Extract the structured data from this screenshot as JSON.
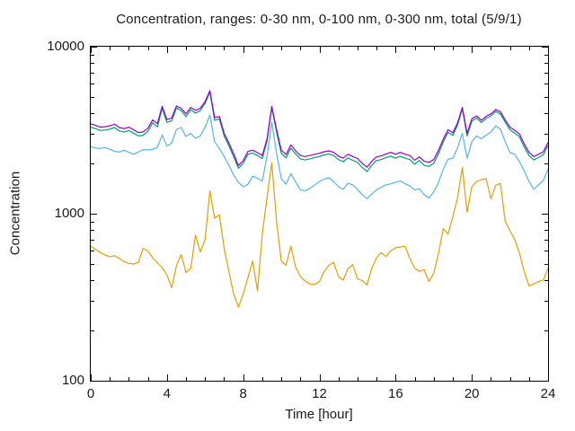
{
  "chart_data": {
    "type": "line",
    "title": "Concentration, ranges: 0-30 nm, 0-100 nm, 0-300 nm, total (5/9/1)",
    "xlabel": "Time [hour]",
    "ylabel": "Concentration",
    "xlim": [
      0,
      24
    ],
    "ylim": [
      100,
      10000
    ],
    "y_scale": "log10",
    "grid": false,
    "legend": "none",
    "axis_color": "#000000",
    "xticks": {
      "major": [
        0,
        4,
        8,
        12,
        16,
        20,
        24
      ],
      "minor_step": 1
    },
    "yticks": {
      "major": [
        10000,
        1000,
        100
      ],
      "major_labels": [
        "10000",
        "1000",
        "100"
      ],
      "minor": "log-decade-2-to-9"
    },
    "x": [
      0,
      0.25,
      0.5,
      0.75,
      1,
      1.25,
      1.5,
      1.75,
      2,
      2.25,
      2.5,
      2.75,
      3,
      3.25,
      3.5,
      3.75,
      4,
      4.25,
      4.5,
      4.75,
      5,
      5.25,
      5.5,
      5.75,
      6,
      6.25,
      6.5,
      6.75,
      7,
      7.25,
      7.5,
      7.75,
      8,
      8.25,
      8.5,
      8.75,
      9,
      9.25,
      9.5,
      9.75,
      10,
      10.25,
      10.5,
      10.75,
      11,
      11.25,
      11.5,
      11.75,
      12,
      12.25,
      12.5,
      12.75,
      13,
      13.25,
      13.5,
      13.75,
      14,
      14.25,
      14.5,
      14.75,
      15,
      15.25,
      15.5,
      15.75,
      16,
      16.25,
      16.5,
      16.75,
      17,
      17.25,
      17.5,
      17.75,
      18,
      18.25,
      18.5,
      18.75,
      19,
      19.25,
      19.5,
      19.75,
      20,
      20.25,
      20.5,
      20.75,
      21,
      21.25,
      21.5,
      21.75,
      22,
      22.25,
      22.5,
      22.75,
      23,
      23.25,
      23.5,
      23.75,
      24
    ],
    "series": [
      {
        "name": "0-30 nm",
        "color": "#e69f00",
        "values": [
          640,
          612,
          585,
          566,
          553,
          560,
          540,
          516,
          505,
          500,
          512,
          620,
          598,
          545,
          508,
          476,
          430,
          360,
          490,
          570,
          445,
          470,
          745,
          590,
          700,
          1370,
          940,
          985,
          620,
          450,
          330,
          276,
          330,
          415,
          520,
          345,
          750,
          1250,
          2020,
          900,
          520,
          490,
          640,
          480,
          420,
          395,
          380,
          378,
          392,
          450,
          490,
          512,
          420,
          400,
          470,
          495,
          408,
          398,
          374,
          470,
          545,
          585,
          555,
          600,
          625,
          632,
          638,
          540,
          472,
          452,
          462,
          392,
          440,
          580,
          815,
          755,
          960,
          1250,
          1900,
          1020,
          1450,
          1560,
          1600,
          1620,
          1230,
          1480,
          1520,
          900,
          790,
          700,
          580,
          450,
          370,
          380,
          392,
          400,
          470
        ]
      },
      {
        "name": "0-100 nm",
        "color": "#56b4e9",
        "values": [
          2520,
          2470,
          2460,
          2490,
          2430,
          2360,
          2340,
          2400,
          2330,
          2270,
          2340,
          2420,
          2410,
          2430,
          2500,
          2960,
          2540,
          2650,
          3200,
          3280,
          2900,
          3030,
          2830,
          2920,
          3300,
          3900,
          2700,
          2450,
          2200,
          1950,
          1700,
          1540,
          1450,
          1500,
          1680,
          1630,
          1570,
          2200,
          3520,
          2300,
          1620,
          1500,
          1740,
          1550,
          1390,
          1370,
          1420,
          1480,
          1560,
          1610,
          1640,
          1560,
          1450,
          1400,
          1520,
          1490,
          1400,
          1300,
          1230,
          1310,
          1390,
          1440,
          1490,
          1510,
          1540,
          1570,
          1510,
          1470,
          1390,
          1410,
          1300,
          1240,
          1350,
          1540,
          1850,
          2120,
          2150,
          2480,
          3030,
          2150,
          2700,
          2920,
          2810,
          2950,
          3080,
          3360,
          3200,
          2700,
          2320,
          2270,
          2050,
          1800,
          1560,
          1400,
          1490,
          1580,
          1850
        ]
      },
      {
        "name": "0-300 nm",
        "color": "#009e73",
        "values": [
          3300,
          3230,
          3150,
          3170,
          3210,
          3280,
          3130,
          3080,
          3150,
          3040,
          2920,
          2950,
          3110,
          3500,
          3310,
          4280,
          3520,
          3600,
          4300,
          4140,
          3810,
          4190,
          4000,
          4140,
          4580,
          5350,
          3630,
          3690,
          2920,
          2550,
          2190,
          1870,
          2000,
          2270,
          2310,
          2230,
          2140,
          2720,
          4310,
          3090,
          2300,
          2160,
          2470,
          2280,
          2130,
          2100,
          2130,
          2170,
          2200,
          2250,
          2280,
          2230,
          2110,
          2050,
          2160,
          2090,
          2030,
          1890,
          1790,
          1950,
          2080,
          2110,
          2170,
          2210,
          2150,
          2210,
          2150,
          2110,
          1980,
          2080,
          1950,
          1920,
          2000,
          2290,
          2690,
          3070,
          2940,
          3400,
          4240,
          2920,
          3580,
          3740,
          3510,
          3720,
          3850,
          4090,
          3960,
          3530,
          3180,
          3040,
          2880,
          2510,
          2230,
          2100,
          2170,
          2250,
          2570
        ]
      },
      {
        "name": "total",
        "color": "#9400d3",
        "values": [
          3450,
          3380,
          3300,
          3320,
          3360,
          3430,
          3280,
          3230,
          3300,
          3180,
          3060,
          3090,
          3250,
          3640,
          3460,
          4400,
          3660,
          3740,
          4420,
          4280,
          3960,
          4330,
          4150,
          4280,
          4700,
          5450,
          3760,
          3820,
          3030,
          2650,
          2280,
          1940,
          2080,
          2360,
          2400,
          2320,
          2230,
          2800,
          4390,
          3200,
          2400,
          2260,
          2580,
          2380,
          2230,
          2200,
          2230,
          2270,
          2300,
          2350,
          2380,
          2330,
          2210,
          2150,
          2270,
          2200,
          2140,
          2000,
          1900,
          2060,
          2190,
          2220,
          2280,
          2330,
          2270,
          2330,
          2270,
          2230,
          2090,
          2190,
          2060,
          2030,
          2110,
          2400,
          2800,
          3180,
          3050,
          3500,
          4330,
          3030,
          3700,
          3850,
          3620,
          3830,
          3960,
          4200,
          4080,
          3650,
          3300,
          3160,
          3000,
          2620,
          2330,
          2200,
          2270,
          2350,
          2670
        ]
      }
    ]
  }
}
